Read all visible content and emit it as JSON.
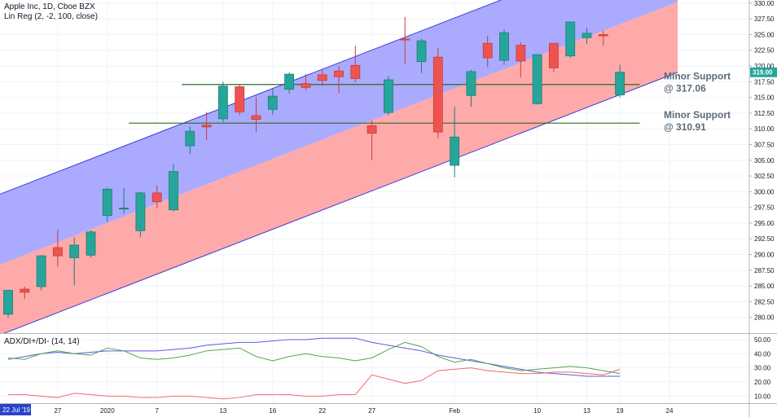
{
  "chart_data": {
    "type": "candlestick",
    "title": "Apple Inc, 1D, Cboe BZX",
    "indicator_label": "Lin Reg (2, -2, 100, close)",
    "last_price": "319.00",
    "price_axis": {
      "ticks": [
        "330.00",
        "327.50",
        "325.00",
        "322.50",
        "320.00",
        "317.50",
        "315.00",
        "312.50",
        "310.00",
        "307.50",
        "305.00",
        "302.50",
        "300.00",
        "297.50",
        "295.00",
        "292.50",
        "290.00",
        "287.50",
        "285.00",
        "282.50",
        "280.00"
      ],
      "range": [
        277.5,
        330.5
      ]
    },
    "x_axis": {
      "first_label": "22 Jul '19",
      "labels": [
        {
          "i": 3,
          "text": "27"
        },
        {
          "i": 6,
          "text": "2020"
        },
        {
          "i": 9,
          "text": "7"
        },
        {
          "i": 13,
          "text": "13"
        },
        {
          "i": 16,
          "text": "16"
        },
        {
          "i": 19,
          "text": "22"
        },
        {
          "i": 22,
          "text": "27"
        },
        {
          "i": 27,
          "text": "Feb"
        },
        {
          "i": 32,
          "text": "10"
        },
        {
          "i": 35,
          "text": "13"
        },
        {
          "i": 37,
          "text": "19"
        },
        {
          "i": 40,
          "text": "24"
        }
      ]
    },
    "candles": [
      {
        "o": 280.5,
        "h": 284.4,
        "l": 280.0,
        "c": 284.3
      },
      {
        "o": 284.5,
        "h": 284.9,
        "l": 282.9,
        "c": 284.0
      },
      {
        "o": 284.9,
        "h": 289.9,
        "l": 284.3,
        "c": 289.8
      },
      {
        "o": 291.1,
        "h": 293.9,
        "l": 288.1,
        "c": 289.8
      },
      {
        "o": 289.5,
        "h": 292.7,
        "l": 285.1,
        "c": 291.5
      },
      {
        "o": 289.9,
        "h": 293.9,
        "l": 289.5,
        "c": 293.6
      },
      {
        "o": 296.2,
        "h": 300.6,
        "l": 295.2,
        "c": 300.4
      },
      {
        "o": 297.4,
        "h": 300.6,
        "l": 296.5,
        "c": 297.4
      },
      {
        "o": 293.8,
        "h": 300.0,
        "l": 292.8,
        "c": 299.8
      },
      {
        "o": 299.8,
        "h": 301.0,
        "l": 297.4,
        "c": 298.4
      },
      {
        "o": 297.1,
        "h": 304.4,
        "l": 296.9,
        "c": 303.2
      },
      {
        "o": 307.3,
        "h": 310.4,
        "l": 306.0,
        "c": 309.6
      },
      {
        "o": 310.6,
        "h": 312.7,
        "l": 308.2,
        "c": 310.3
      },
      {
        "o": 311.6,
        "h": 317.5,
        "l": 311.1,
        "c": 316.8
      },
      {
        "o": 316.7,
        "h": 317.1,
        "l": 312.2,
        "c": 312.7
      },
      {
        "o": 312.1,
        "h": 315.1,
        "l": 309.5,
        "c": 311.5
      },
      {
        "o": 313.1,
        "h": 316.4,
        "l": 312.2,
        "c": 315.2
      },
      {
        "o": 316.3,
        "h": 319.0,
        "l": 315.6,
        "c": 318.7
      },
      {
        "o": 317.2,
        "h": 318.7,
        "l": 316.2,
        "c": 316.6
      },
      {
        "o": 318.6,
        "h": 319.5,
        "l": 316.8,
        "c": 317.7
      },
      {
        "o": 319.2,
        "h": 320.0,
        "l": 315.7,
        "c": 318.3
      },
      {
        "o": 320.1,
        "h": 323.2,
        "l": 317.4,
        "c": 318.0
      },
      {
        "o": 310.5,
        "h": 311.3,
        "l": 305.0,
        "c": 309.3
      },
      {
        "o": 312.6,
        "h": 318.4,
        "l": 312.2,
        "c": 317.8
      },
      {
        "o": 324.3,
        "h": 327.8,
        "l": 320.3,
        "c": 324.2
      },
      {
        "o": 320.7,
        "h": 324.3,
        "l": 318.9,
        "c": 324.0
      },
      {
        "o": 321.4,
        "h": 322.9,
        "l": 308.5,
        "c": 309.5
      },
      {
        "o": 304.2,
        "h": 313.5,
        "l": 302.3,
        "c": 308.7
      },
      {
        "o": 315.3,
        "h": 319.4,
        "l": 313.5,
        "c": 319.1
      },
      {
        "o": 323.6,
        "h": 324.8,
        "l": 319.8,
        "c": 321.3
      },
      {
        "o": 320.9,
        "h": 325.8,
        "l": 320.2,
        "c": 325.3
      },
      {
        "o": 323.3,
        "h": 323.8,
        "l": 318.2,
        "c": 320.8
      },
      {
        "o": 314.0,
        "h": 321.9,
        "l": 313.9,
        "c": 321.8
      },
      {
        "o": 323.6,
        "h": 323.7,
        "l": 319.0,
        "c": 319.7
      },
      {
        "o": 321.6,
        "h": 327.0,
        "l": 321.3,
        "c": 327.0
      },
      {
        "o": 324.5,
        "h": 326.0,
        "l": 323.5,
        "c": 325.2
      },
      {
        "o": 325.0,
        "h": 325.6,
        "l": 323.2,
        "c": 324.8
      },
      {
        "o": 315.4,
        "h": 320.2,
        "l": 315.0,
        "c": 319.0
      }
    ],
    "regression_channel": {
      "upper": {
        "x1": -0.5,
        "y1": 299.6,
        "x2": 40.5,
        "y2": 341.4
      },
      "mid": {
        "x1": -0.5,
        "y1": 288.4,
        "x2": 40.5,
        "y2": 330.2
      },
      "lower": {
        "x1": -0.5,
        "y1": 277.2,
        "x2": 40.5,
        "y2": 319.0
      },
      "upper_fill": "#aaaaff",
      "lower_fill": "#ffaaaa",
      "line_color": "#3c3cd8"
    },
    "horizontal_levels": [
      {
        "label_top": "Minor Support",
        "label_bottom": "@ 317.06",
        "value": 317.06,
        "from": 10.5,
        "to": 38.2,
        "color": "#2e6b23"
      },
      {
        "label_top": "Minor Support",
        "label_bottom": "@ 310.91",
        "value": 310.91,
        "from": 7.3,
        "to": 38.2,
        "color": "#2e6b23"
      }
    ],
    "colors": {
      "up": "#26a69a",
      "down": "#ef5350",
      "up_border": "#1d7d73",
      "down_border": "#c93c39"
    },
    "adx_panel": {
      "label": "ADX/DI+/DI- (14, 14)",
      "ticks": [
        "50.00",
        "40.00",
        "30.00",
        "20.00",
        "10.00"
      ],
      "range": [
        5,
        54
      ],
      "adx": [
        36,
        38,
        40,
        41,
        40,
        41,
        42,
        42,
        42,
        42,
        43,
        44,
        46,
        47,
        48,
        48,
        49,
        50,
        50,
        51,
        51,
        51,
        48,
        46,
        44,
        42,
        39,
        37,
        35,
        33,
        31,
        29,
        27,
        26,
        25,
        24,
        24,
        24
      ],
      "di_plus": [
        37,
        36,
        40,
        42,
        40,
        39,
        44,
        42,
        37,
        36,
        37,
        39,
        42,
        43,
        44,
        38,
        35,
        38,
        40,
        38,
        37,
        35,
        37,
        43,
        48,
        45,
        38,
        34,
        36,
        33,
        30,
        28,
        29,
        30,
        31,
        30,
        28,
        26
      ],
      "di_minus": [
        11,
        11,
        10,
        9,
        12,
        11,
        10,
        10,
        9,
        9,
        10,
        10,
        9,
        8,
        9,
        11,
        11,
        11,
        10,
        10,
        11,
        11,
        25,
        22,
        19,
        21,
        28,
        29,
        30,
        28,
        27,
        26,
        26,
        27,
        27,
        26,
        25,
        29
      ],
      "colors": {
        "adx": "#5b5be0",
        "di_plus": "#56a550",
        "di_minus": "#ef6a6a"
      }
    }
  }
}
